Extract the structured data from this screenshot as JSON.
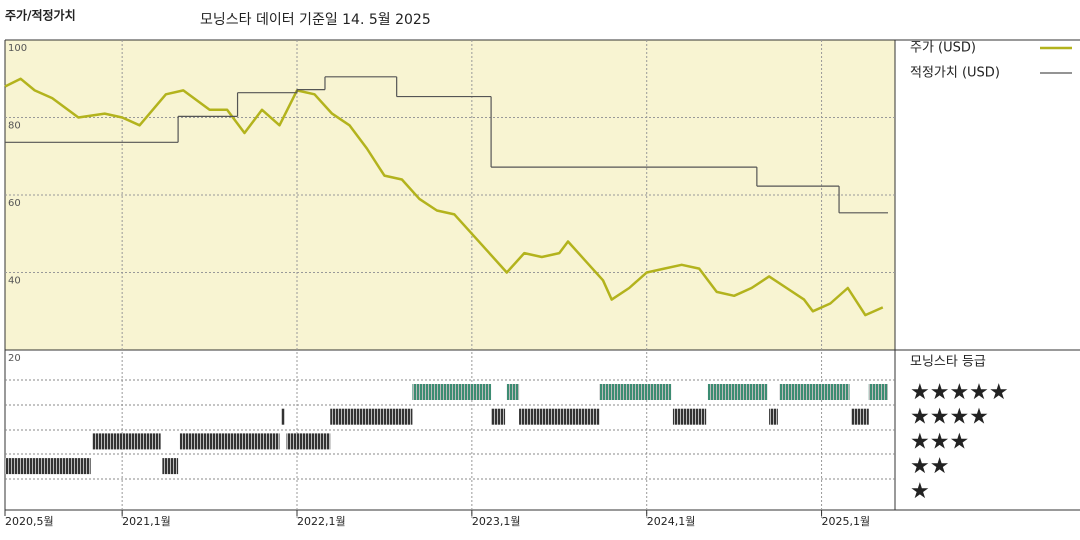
{
  "chart_data": [
    {
      "type": "line",
      "title": "주가/적정가치",
      "subtitle": "모닝스타 데이터 기준일 14. 5월 2025",
      "xlim": [
        2020.33,
        2025.42
      ],
      "xticks": [
        {
          "value": 2020.33,
          "label": "2020,5월"
        },
        {
          "value": 2021.0,
          "label": "2021,1월"
        },
        {
          "value": 2022.0,
          "label": "2022,1월"
        },
        {
          "value": 2023.0,
          "label": "2023,1월"
        },
        {
          "value": 2024.0,
          "label": "2024,1월"
        },
        {
          "value": 2025.0,
          "label": "2025,1월"
        }
      ],
      "ylim": [
        20,
        100
      ],
      "yticks": [
        20,
        40,
        60,
        80,
        100
      ],
      "grid": true,
      "series": [
        {
          "name": "주가 (USD)",
          "color": "#b3b31d",
          "x": [
            2020.33,
            2020.42,
            2020.5,
            2020.6,
            2020.75,
            2020.9,
            2021.0,
            2021.1,
            2021.25,
            2021.35,
            2021.5,
            2021.6,
            2021.7,
            2021.8,
            2021.9,
            2022.0,
            2022.1,
            2022.2,
            2022.3,
            2022.4,
            2022.5,
            2022.6,
            2022.7,
            2022.8,
            2022.9,
            2023.0,
            2023.1,
            2023.2,
            2023.3,
            2023.4,
            2023.5,
            2023.55,
            2023.65,
            2023.75,
            2023.8,
            2023.9,
            2024.0,
            2024.1,
            2024.2,
            2024.3,
            2024.4,
            2024.5,
            2024.6,
            2024.7,
            2024.8,
            2024.9,
            2024.95,
            2025.05,
            2025.15,
            2025.25,
            2025.35
          ],
          "values": [
            88,
            90,
            87,
            85,
            80,
            81,
            80,
            78,
            86,
            87,
            82,
            82,
            76,
            82,
            78,
            87,
            86,
            81,
            78,
            72,
            65,
            64,
            59,
            56,
            55,
            50,
            45,
            40,
            45,
            44,
            45,
            48,
            43,
            38,
            33,
            36,
            40,
            41,
            42,
            41,
            35,
            34,
            36,
            39,
            36,
            33,
            30,
            32,
            36,
            29,
            31
          ]
        },
        {
          "name": "적정가치 (USD)",
          "color": "#555555",
          "step": true,
          "x": [
            2020.33,
            2021.32,
            2021.66,
            2022.0,
            2022.16,
            2022.57,
            2023.11,
            2024.63,
            2025.1,
            2025.38
          ],
          "values": [
            73.6,
            80.3,
            86.4,
            87.2,
            90.5,
            85.4,
            67.2,
            62.3,
            55.4,
            55.4
          ]
        }
      ]
    },
    {
      "type": "timeline",
      "title": "모닝스타 등급",
      "categories": [
        "★★★★★",
        "★★★★",
        "★★★",
        "★★",
        "★"
      ],
      "colors": [
        "#3c8c72",
        "#333333",
        "#333333",
        "#333333",
        "#333333"
      ],
      "segments": [
        {
          "start": 2020.33,
          "end": 2020.82,
          "rating": 2
        },
        {
          "start": 2020.83,
          "end": 2021.22,
          "rating": 3
        },
        {
          "start": 2021.23,
          "end": 2021.32,
          "rating": 2
        },
        {
          "start": 2021.33,
          "end": 2021.9,
          "rating": 3
        },
        {
          "start": 2021.91,
          "end": 2021.93,
          "rating": 4
        },
        {
          "start": 2021.94,
          "end": 2022.19,
          "rating": 3
        },
        {
          "start": 2022.19,
          "end": 2022.66,
          "rating": 4
        },
        {
          "start": 2022.66,
          "end": 2023.11,
          "rating": 5
        },
        {
          "start": 2023.11,
          "end": 2023.19,
          "rating": 4
        },
        {
          "start": 2023.2,
          "end": 2023.27,
          "rating": 5
        },
        {
          "start": 2023.27,
          "end": 2023.73,
          "rating": 4
        },
        {
          "start": 2023.73,
          "end": 2024.14,
          "rating": 5
        },
        {
          "start": 2024.15,
          "end": 2024.34,
          "rating": 4
        },
        {
          "start": 2024.35,
          "end": 2024.69,
          "rating": 5
        },
        {
          "start": 2024.7,
          "end": 2024.75,
          "rating": 4
        },
        {
          "start": 2024.76,
          "end": 2025.16,
          "rating": 5
        },
        {
          "start": 2025.17,
          "end": 2025.27,
          "rating": 4
        },
        {
          "start": 2025.27,
          "end": 2025.38,
          "rating": 5
        }
      ]
    }
  ]
}
